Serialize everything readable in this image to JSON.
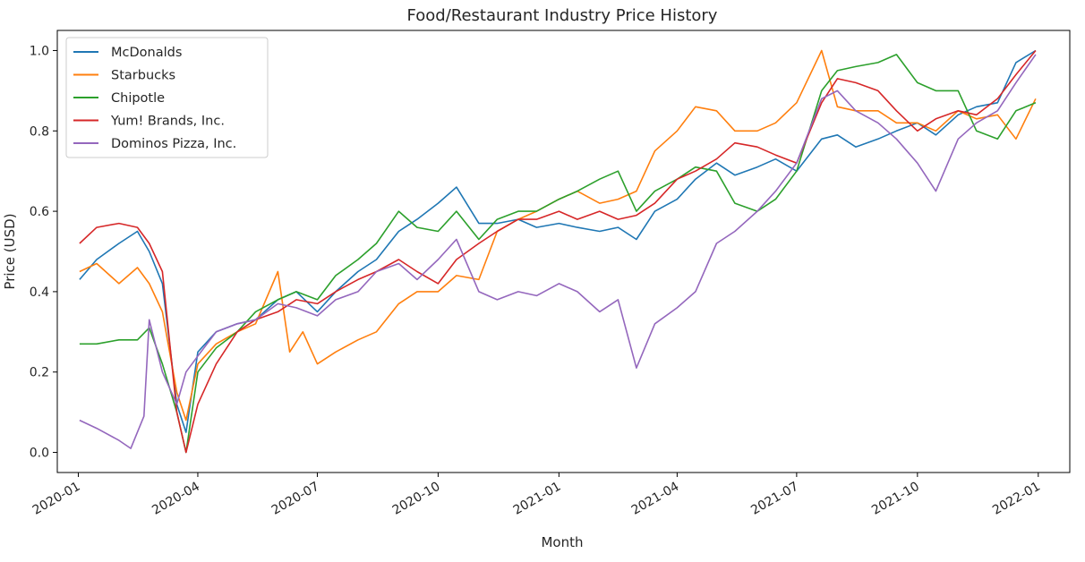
{
  "chart_data": {
    "type": "line",
    "title": "Food/Restaurant Industry Price History",
    "xlabel": "Month",
    "ylabel": "Price (USD)",
    "xlim": [
      "2019-12-16",
      "2022-01-25"
    ],
    "ylim": [
      -0.05,
      1.05
    ],
    "x_ticks": [
      "2020-01",
      "2020-04",
      "2020-07",
      "2020-10",
      "2021-01",
      "2021-04",
      "2021-07",
      "2021-10",
      "2022-01"
    ],
    "y_ticks": [
      "0.0",
      "0.2",
      "0.4",
      "0.6",
      "0.8",
      "1.0"
    ],
    "grid": false,
    "legend_position": "upper-left",
    "series": [
      {
        "name": "McDonalds",
        "color": "#1f77b4",
        "points": [
          [
            "2020-01-02",
            0.43
          ],
          [
            "2020-01-15",
            0.48
          ],
          [
            "2020-02-01",
            0.52
          ],
          [
            "2020-02-15",
            0.55
          ],
          [
            "2020-02-24",
            0.5
          ],
          [
            "2020-03-05",
            0.42
          ],
          [
            "2020-03-16",
            0.12
          ],
          [
            "2020-03-23",
            0.05
          ],
          [
            "2020-04-01",
            0.25
          ],
          [
            "2020-04-15",
            0.3
          ],
          [
            "2020-05-01",
            0.32
          ],
          [
            "2020-05-15",
            0.33
          ],
          [
            "2020-06-01",
            0.38
          ],
          [
            "2020-06-15",
            0.4
          ],
          [
            "2020-07-01",
            0.35
          ],
          [
            "2020-07-15",
            0.4
          ],
          [
            "2020-08-01",
            0.45
          ],
          [
            "2020-08-15",
            0.48
          ],
          [
            "2020-09-01",
            0.55
          ],
          [
            "2020-09-15",
            0.58
          ],
          [
            "2020-10-01",
            0.62
          ],
          [
            "2020-10-15",
            0.66
          ],
          [
            "2020-11-01",
            0.57
          ],
          [
            "2020-11-15",
            0.57
          ],
          [
            "2020-12-01",
            0.58
          ],
          [
            "2020-12-15",
            0.56
          ],
          [
            "2021-01-01",
            0.57
          ],
          [
            "2021-01-15",
            0.56
          ],
          [
            "2021-02-01",
            0.55
          ],
          [
            "2021-02-15",
            0.56
          ],
          [
            "2021-03-01",
            0.53
          ],
          [
            "2021-03-15",
            0.6
          ],
          [
            "2021-04-01",
            0.63
          ],
          [
            "2021-04-15",
            0.68
          ],
          [
            "2021-05-01",
            0.72
          ],
          [
            "2021-05-15",
            0.69
          ],
          [
            "2021-06-01",
            0.71
          ],
          [
            "2021-06-15",
            0.73
          ],
          [
            "2021-07-01",
            0.7
          ],
          [
            "2021-07-20",
            0.78
          ],
          [
            "2021-08-01",
            0.79
          ],
          [
            "2021-08-15",
            0.76
          ],
          [
            "2021-09-01",
            0.78
          ],
          [
            "2021-09-15",
            0.8
          ],
          [
            "2021-10-01",
            0.82
          ],
          [
            "2021-10-15",
            0.79
          ],
          [
            "2021-11-01",
            0.84
          ],
          [
            "2021-11-15",
            0.86
          ],
          [
            "2021-12-01",
            0.87
          ],
          [
            "2021-12-15",
            0.97
          ],
          [
            "2021-12-30",
            1.0
          ]
        ]
      },
      {
        "name": "Starbucks",
        "color": "#ff7f0e",
        "points": [
          [
            "2020-01-02",
            0.45
          ],
          [
            "2020-01-15",
            0.47
          ],
          [
            "2020-02-01",
            0.42
          ],
          [
            "2020-02-15",
            0.46
          ],
          [
            "2020-02-24",
            0.42
          ],
          [
            "2020-03-05",
            0.35
          ],
          [
            "2020-03-16",
            0.15
          ],
          [
            "2020-03-23",
            0.08
          ],
          [
            "2020-04-01",
            0.22
          ],
          [
            "2020-04-15",
            0.27
          ],
          [
            "2020-05-01",
            0.3
          ],
          [
            "2020-05-15",
            0.32
          ],
          [
            "2020-06-01",
            0.45
          ],
          [
            "2020-06-10",
            0.25
          ],
          [
            "2020-06-20",
            0.3
          ],
          [
            "2020-07-01",
            0.22
          ],
          [
            "2020-07-15",
            0.25
          ],
          [
            "2020-08-01",
            0.28
          ],
          [
            "2020-08-15",
            0.3
          ],
          [
            "2020-09-01",
            0.37
          ],
          [
            "2020-09-15",
            0.4
          ],
          [
            "2020-10-01",
            0.4
          ],
          [
            "2020-10-15",
            0.44
          ],
          [
            "2020-11-01",
            0.43
          ],
          [
            "2020-11-15",
            0.55
          ],
          [
            "2020-12-01",
            0.58
          ],
          [
            "2020-12-15",
            0.6
          ],
          [
            "2021-01-01",
            0.63
          ],
          [
            "2021-01-15",
            0.65
          ],
          [
            "2021-02-01",
            0.62
          ],
          [
            "2021-02-15",
            0.63
          ],
          [
            "2021-03-01",
            0.65
          ],
          [
            "2021-03-15",
            0.75
          ],
          [
            "2021-04-01",
            0.8
          ],
          [
            "2021-04-15",
            0.86
          ],
          [
            "2021-05-01",
            0.85
          ],
          [
            "2021-05-15",
            0.8
          ],
          [
            "2021-06-01",
            0.8
          ],
          [
            "2021-06-15",
            0.82
          ],
          [
            "2021-07-01",
            0.87
          ],
          [
            "2021-07-20",
            1.0
          ],
          [
            "2021-08-01",
            0.86
          ],
          [
            "2021-08-15",
            0.85
          ],
          [
            "2021-09-01",
            0.85
          ],
          [
            "2021-09-15",
            0.82
          ],
          [
            "2021-10-01",
            0.82
          ],
          [
            "2021-10-15",
            0.8
          ],
          [
            "2021-11-01",
            0.85
          ],
          [
            "2021-11-15",
            0.83
          ],
          [
            "2021-12-01",
            0.84
          ],
          [
            "2021-12-15",
            0.78
          ],
          [
            "2021-12-30",
            0.88
          ]
        ]
      },
      {
        "name": "Chipotle",
        "color": "#2ca02c",
        "points": [
          [
            "2020-01-02",
            0.27
          ],
          [
            "2020-01-15",
            0.27
          ],
          [
            "2020-02-01",
            0.28
          ],
          [
            "2020-02-15",
            0.28
          ],
          [
            "2020-02-24",
            0.31
          ],
          [
            "2020-03-05",
            0.22
          ],
          [
            "2020-03-16",
            0.1
          ],
          [
            "2020-03-23",
            0.0
          ],
          [
            "2020-04-01",
            0.2
          ],
          [
            "2020-04-15",
            0.26
          ],
          [
            "2020-05-01",
            0.3
          ],
          [
            "2020-05-15",
            0.35
          ],
          [
            "2020-06-01",
            0.38
          ],
          [
            "2020-06-15",
            0.4
          ],
          [
            "2020-07-01",
            0.38
          ],
          [
            "2020-07-15",
            0.44
          ],
          [
            "2020-08-01",
            0.48
          ],
          [
            "2020-08-15",
            0.52
          ],
          [
            "2020-09-01",
            0.6
          ],
          [
            "2020-09-15",
            0.56
          ],
          [
            "2020-10-01",
            0.55
          ],
          [
            "2020-10-15",
            0.6
          ],
          [
            "2020-11-01",
            0.53
          ],
          [
            "2020-11-15",
            0.58
          ],
          [
            "2020-12-01",
            0.6
          ],
          [
            "2020-12-15",
            0.6
          ],
          [
            "2021-01-01",
            0.63
          ],
          [
            "2021-01-15",
            0.65
          ],
          [
            "2021-02-01",
            0.68
          ],
          [
            "2021-02-15",
            0.7
          ],
          [
            "2021-03-01",
            0.6
          ],
          [
            "2021-03-15",
            0.65
          ],
          [
            "2021-04-01",
            0.68
          ],
          [
            "2021-04-15",
            0.71
          ],
          [
            "2021-05-01",
            0.7
          ],
          [
            "2021-05-15",
            0.62
          ],
          [
            "2021-06-01",
            0.6
          ],
          [
            "2021-06-15",
            0.63
          ],
          [
            "2021-07-01",
            0.7
          ],
          [
            "2021-07-20",
            0.9
          ],
          [
            "2021-08-01",
            0.95
          ],
          [
            "2021-08-15",
            0.96
          ],
          [
            "2021-09-01",
            0.97
          ],
          [
            "2021-09-15",
            0.99
          ],
          [
            "2021-10-01",
            0.92
          ],
          [
            "2021-10-15",
            0.9
          ],
          [
            "2021-11-01",
            0.9
          ],
          [
            "2021-11-15",
            0.8
          ],
          [
            "2021-12-01",
            0.78
          ],
          [
            "2021-12-15",
            0.85
          ],
          [
            "2021-12-30",
            0.87
          ]
        ]
      },
      {
        "name": "Yum! Brands, Inc.",
        "color": "#d62728",
        "points": [
          [
            "2020-01-02",
            0.52
          ],
          [
            "2020-01-15",
            0.56
          ],
          [
            "2020-02-01",
            0.57
          ],
          [
            "2020-02-15",
            0.56
          ],
          [
            "2020-02-24",
            0.52
          ],
          [
            "2020-03-05",
            0.45
          ],
          [
            "2020-03-16",
            0.1
          ],
          [
            "2020-03-23",
            0.0
          ],
          [
            "2020-04-01",
            0.12
          ],
          [
            "2020-04-15",
            0.22
          ],
          [
            "2020-05-01",
            0.3
          ],
          [
            "2020-05-15",
            0.33
          ],
          [
            "2020-06-01",
            0.35
          ],
          [
            "2020-06-15",
            0.38
          ],
          [
            "2020-07-01",
            0.37
          ],
          [
            "2020-07-15",
            0.4
          ],
          [
            "2020-08-01",
            0.43
          ],
          [
            "2020-08-15",
            0.45
          ],
          [
            "2020-09-01",
            0.48
          ],
          [
            "2020-09-15",
            0.45
          ],
          [
            "2020-10-01",
            0.42
          ],
          [
            "2020-10-15",
            0.48
          ],
          [
            "2020-11-01",
            0.52
          ],
          [
            "2020-11-15",
            0.55
          ],
          [
            "2020-12-01",
            0.58
          ],
          [
            "2020-12-15",
            0.58
          ],
          [
            "2021-01-01",
            0.6
          ],
          [
            "2021-01-15",
            0.58
          ],
          [
            "2021-02-01",
            0.6
          ],
          [
            "2021-02-15",
            0.58
          ],
          [
            "2021-03-01",
            0.59
          ],
          [
            "2021-03-15",
            0.62
          ],
          [
            "2021-04-01",
            0.68
          ],
          [
            "2021-04-15",
            0.7
          ],
          [
            "2021-05-01",
            0.73
          ],
          [
            "2021-05-15",
            0.77
          ],
          [
            "2021-06-01",
            0.76
          ],
          [
            "2021-06-15",
            0.74
          ],
          [
            "2021-07-01",
            0.72
          ],
          [
            "2021-07-20",
            0.87
          ],
          [
            "2021-08-01",
            0.93
          ],
          [
            "2021-08-15",
            0.92
          ],
          [
            "2021-09-01",
            0.9
          ],
          [
            "2021-09-15",
            0.85
          ],
          [
            "2021-10-01",
            0.8
          ],
          [
            "2021-10-15",
            0.83
          ],
          [
            "2021-11-01",
            0.85
          ],
          [
            "2021-11-15",
            0.84
          ],
          [
            "2021-12-01",
            0.88
          ],
          [
            "2021-12-15",
            0.94
          ],
          [
            "2021-12-30",
            1.0
          ]
        ]
      },
      {
        "name": "Dominos Pizza, Inc.",
        "color": "#9467bd",
        "points": [
          [
            "2020-01-02",
            0.08
          ],
          [
            "2020-01-15",
            0.06
          ],
          [
            "2020-02-01",
            0.03
          ],
          [
            "2020-02-10",
            0.01
          ],
          [
            "2020-02-20",
            0.09
          ],
          [
            "2020-02-24",
            0.33
          ],
          [
            "2020-03-05",
            0.2
          ],
          [
            "2020-03-16",
            0.12
          ],
          [
            "2020-03-23",
            0.2
          ],
          [
            "2020-04-01",
            0.24
          ],
          [
            "2020-04-15",
            0.3
          ],
          [
            "2020-05-01",
            0.32
          ],
          [
            "2020-05-15",
            0.33
          ],
          [
            "2020-06-01",
            0.37
          ],
          [
            "2020-06-15",
            0.36
          ],
          [
            "2020-07-01",
            0.34
          ],
          [
            "2020-07-15",
            0.38
          ],
          [
            "2020-08-01",
            0.4
          ],
          [
            "2020-08-15",
            0.45
          ],
          [
            "2020-09-01",
            0.47
          ],
          [
            "2020-09-15",
            0.43
          ],
          [
            "2020-10-01",
            0.48
          ],
          [
            "2020-10-15",
            0.53
          ],
          [
            "2020-11-01",
            0.4
          ],
          [
            "2020-11-15",
            0.38
          ],
          [
            "2020-12-01",
            0.4
          ],
          [
            "2020-12-15",
            0.39
          ],
          [
            "2021-01-01",
            0.42
          ],
          [
            "2021-01-15",
            0.4
          ],
          [
            "2021-02-01",
            0.35
          ],
          [
            "2021-02-15",
            0.38
          ],
          [
            "2021-03-01",
            0.21
          ],
          [
            "2021-03-15",
            0.32
          ],
          [
            "2021-04-01",
            0.36
          ],
          [
            "2021-04-15",
            0.4
          ],
          [
            "2021-05-01",
            0.52
          ],
          [
            "2021-05-15",
            0.55
          ],
          [
            "2021-06-01",
            0.6
          ],
          [
            "2021-06-15",
            0.65
          ],
          [
            "2021-07-01",
            0.72
          ],
          [
            "2021-07-20",
            0.88
          ],
          [
            "2021-08-01",
            0.9
          ],
          [
            "2021-08-15",
            0.85
          ],
          [
            "2021-09-01",
            0.82
          ],
          [
            "2021-09-15",
            0.78
          ],
          [
            "2021-10-01",
            0.72
          ],
          [
            "2021-10-15",
            0.65
          ],
          [
            "2021-11-01",
            0.78
          ],
          [
            "2021-11-15",
            0.82
          ],
          [
            "2021-12-01",
            0.85
          ],
          [
            "2021-12-15",
            0.92
          ],
          [
            "2021-12-30",
            0.99
          ]
        ]
      }
    ]
  }
}
